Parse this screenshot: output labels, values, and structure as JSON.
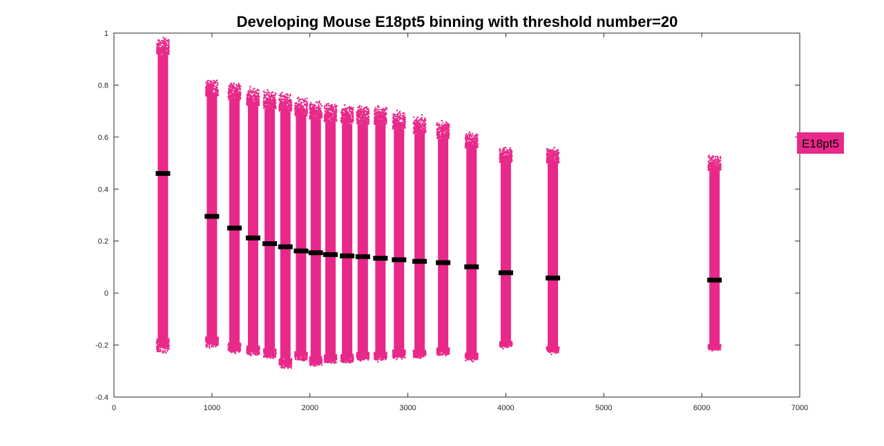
{
  "chart_data": {
    "type": "scatter",
    "title": "Developing Mouse E18pt5 binning with threshold number=20",
    "xlabel": "",
    "ylabel": "",
    "xlim": [
      0,
      7000
    ],
    "ylim": [
      -0.4,
      1
    ],
    "x_ticks": [
      "0",
      "1000",
      "2000",
      "3000",
      "4000",
      "5000",
      "6000",
      "7000"
    ],
    "y_ticks": [
      "-0.4",
      "-0.2",
      "0",
      "0.2",
      "0.4",
      "0.6",
      "0.8",
      "1"
    ],
    "grid": false,
    "legend": {
      "label": "E18pt5",
      "placement": "right",
      "color": "#e8298a"
    },
    "series": [
      {
        "name": "E18pt5",
        "color": "#e8298a",
        "bins": [
          {
            "x": 500,
            "min": -0.23,
            "max": 0.98,
            "median": 0.46
          },
          {
            "x": 1000,
            "min": -0.21,
            "max": 0.82,
            "median": 0.295
          },
          {
            "x": 1230,
            "min": -0.23,
            "max": 0.81,
            "median": 0.25
          },
          {
            "x": 1420,
            "min": -0.24,
            "max": 0.79,
            "median": 0.212
          },
          {
            "x": 1590,
            "min": -0.25,
            "max": 0.78,
            "median": 0.19
          },
          {
            "x": 1750,
            "min": -0.29,
            "max": 0.77,
            "median": 0.178
          },
          {
            "x": 1910,
            "min": -0.26,
            "max": 0.75,
            "median": 0.162
          },
          {
            "x": 2060,
            "min": -0.28,
            "max": 0.74,
            "median": 0.155
          },
          {
            "x": 2210,
            "min": -0.27,
            "max": 0.73,
            "median": 0.148
          },
          {
            "x": 2380,
            "min": -0.27,
            "max": 0.72,
            "median": 0.143
          },
          {
            "x": 2540,
            "min": -0.26,
            "max": 0.72,
            "median": 0.14
          },
          {
            "x": 2720,
            "min": -0.26,
            "max": 0.72,
            "median": 0.134
          },
          {
            "x": 2910,
            "min": -0.25,
            "max": 0.7,
            "median": 0.128
          },
          {
            "x": 3120,
            "min": -0.25,
            "max": 0.68,
            "median": 0.122
          },
          {
            "x": 3360,
            "min": -0.24,
            "max": 0.66,
            "median": 0.117
          },
          {
            "x": 3650,
            "min": -0.26,
            "max": 0.62,
            "median": 0.101
          },
          {
            "x": 4000,
            "min": -0.21,
            "max": 0.56,
            "median": 0.078
          },
          {
            "x": 4480,
            "min": -0.23,
            "max": 0.56,
            "median": 0.058
          },
          {
            "x": 6130,
            "min": -0.22,
            "max": 0.53,
            "median": 0.05
          }
        ]
      }
    ],
    "median_marker_color": "#000000"
  }
}
